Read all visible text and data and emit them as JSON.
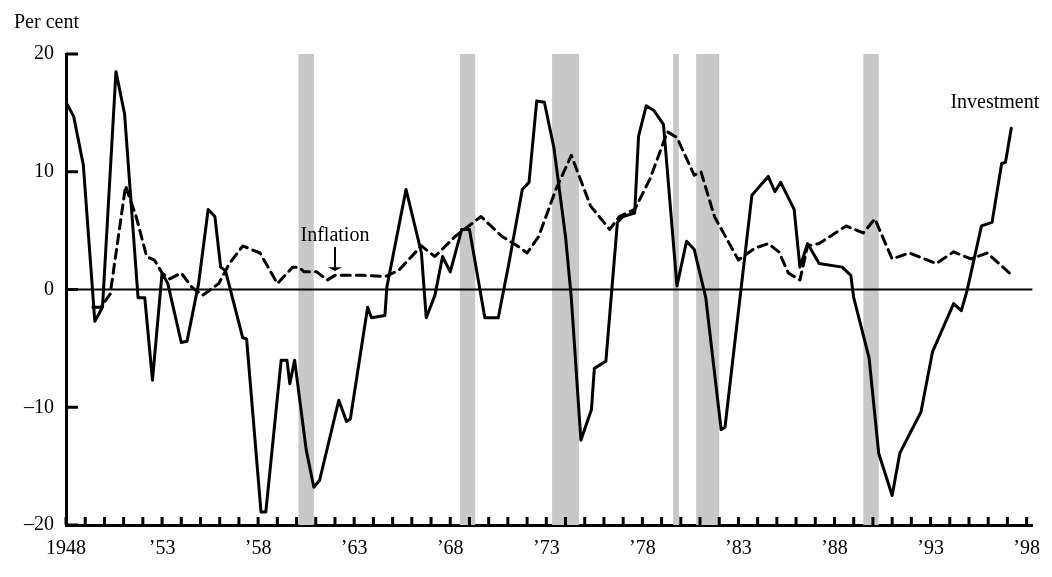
{
  "chart_data": {
    "type": "line",
    "ylabel": "Per cent",
    "xlim": [
      1948,
      1998.3
    ],
    "ylim": [
      -20,
      20
    ],
    "yticks": [
      {
        "value": -20,
        "label": "–20"
      },
      {
        "value": -10,
        "label": "–10"
      },
      0,
      10,
      20
    ],
    "xticks": [
      {
        "value": 1948,
        "label": "1948"
      },
      {
        "value": 1949,
        "label": null
      },
      {
        "value": 1950,
        "label": null
      },
      {
        "value": 1951,
        "label": null
      },
      {
        "value": 1952,
        "label": null
      },
      {
        "value": 1953,
        "label": "’53"
      },
      {
        "value": 1954,
        "label": null
      },
      {
        "value": 1955,
        "label": null
      },
      {
        "value": 1956,
        "label": null
      },
      {
        "value": 1957,
        "label": null
      },
      {
        "value": 1958,
        "label": "’58"
      },
      {
        "value": 1959,
        "label": null
      },
      {
        "value": 1960,
        "label": null
      },
      {
        "value": 1961,
        "label": null
      },
      {
        "value": 1962,
        "label": null
      },
      {
        "value": 1963,
        "label": "’63"
      },
      {
        "value": 1964,
        "label": null
      },
      {
        "value": 1965,
        "label": null
      },
      {
        "value": 1966,
        "label": null
      },
      {
        "value": 1967,
        "label": null
      },
      {
        "value": 1968,
        "label": "’68"
      },
      {
        "value": 1969,
        "label": null
      },
      {
        "value": 1970,
        "label": null
      },
      {
        "value": 1971,
        "label": null
      },
      {
        "value": 1972,
        "label": null
      },
      {
        "value": 1973,
        "label": "’73"
      },
      {
        "value": 1974,
        "label": null
      },
      {
        "value": 1975,
        "label": null
      },
      {
        "value": 1976,
        "label": null
      },
      {
        "value": 1977,
        "label": null
      },
      {
        "value": 1978,
        "label": "’78"
      },
      {
        "value": 1979,
        "label": null
      },
      {
        "value": 1980,
        "label": null
      },
      {
        "value": 1981,
        "label": null
      },
      {
        "value": 1982,
        "label": null
      },
      {
        "value": 1983,
        "label": "’83"
      },
      {
        "value": 1984,
        "label": null
      },
      {
        "value": 1985,
        "label": null
      },
      {
        "value": 1986,
        "label": null
      },
      {
        "value": 1987,
        "label": null
      },
      {
        "value": 1988,
        "label": "’88"
      },
      {
        "value": 1989,
        "label": null
      },
      {
        "value": 1990,
        "label": null
      },
      {
        "value": 1991,
        "label": null
      },
      {
        "value": 1992,
        "label": null
      },
      {
        "value": 1993,
        "label": "’93"
      },
      {
        "value": 1994,
        "label": null
      },
      {
        "value": 1995,
        "label": null
      },
      {
        "value": 1996,
        "label": null
      },
      {
        "value": 1997,
        "label": null
      },
      {
        "value": 1998,
        "label": "’98"
      }
    ],
    "bands": [
      {
        "axis": "x",
        "from": 1960.1,
        "to": 1960.9,
        "color": "#c8c8c8"
      },
      {
        "axis": "x",
        "from": 1968.5,
        "to": 1969.3,
        "color": "#c8c8c8"
      },
      {
        "axis": "x",
        "from": 1973.3,
        "to": 1974.7,
        "color": "#c8c8c8"
      },
      {
        "axis": "x",
        "from": 1979.6,
        "to": 1979.9,
        "color": "#c8c8c8"
      },
      {
        "axis": "x",
        "from": 1980.8,
        "to": 1982.0,
        "color": "#c8c8c8"
      },
      {
        "axis": "x",
        "from": 1989.5,
        "to": 1990.3,
        "color": "#c8c8c8"
      }
    ],
    "ref_lines": [
      {
        "axis": "y",
        "value": 0,
        "color": "#000000"
      }
    ],
    "legend": false,
    "series": [
      {
        "name": "Investment",
        "color": "#000000",
        "line_style": "solid",
        "x": [
          1948.0,
          1948.4,
          1948.9,
          1949.5,
          1949.9,
          1950.6,
          1951.05,
          1951.75,
          1952.1,
          1952.5,
          1953.0,
          1953.3,
          1954.0,
          1954.3,
          1954.9,
          1955.4,
          1955.75,
          1956.05,
          1956.3,
          1957.2,
          1957.4,
          1958.15,
          1958.4,
          1959.2,
          1959.5,
          1959.65,
          1959.9,
          1960.5,
          1960.9,
          1961.2,
          1962.2,
          1962.6,
          1962.8,
          1963.7,
          1963.9,
          1964.6,
          1964.7,
          1965.7,
          1966.5,
          1966.75,
          1967.2,
          1967.6,
          1968.0,
          1968.6,
          1969.0,
          1969.8,
          1970.5,
          1971.05,
          1971.75,
          1972.1,
          1972.5,
          1972.9,
          1973.4,
          1974.0,
          1974.3,
          1974.8,
          1975.35,
          1975.5,
          1976.1,
          1976.7,
          1977.0,
          1977.6,
          1977.8,
          1978.2,
          1978.6,
          1979.1,
          1979.8,
          1980.3,
          1980.7,
          1981.3,
          1982.1,
          1982.3,
          1983.7,
          1984.55,
          1984.9,
          1985.2,
          1985.9,
          1986.2,
          1986.6,
          1987.2,
          1988.4,
          1988.85,
          1989.0,
          1989.8,
          1990.3,
          1991.0,
          1991.4,
          1992.5,
          1993.1,
          1994.2,
          1994.6,
          1994.9,
          1995.65,
          1996.2,
          1996.7,
          1996.9,
          1997.2
        ],
        "values": [
          15.9,
          14.7,
          10.6,
          -2.7,
          -1.5,
          18.5,
          14.9,
          -0.7,
          -0.7,
          -7.7,
          1.4,
          0.5,
          -4.5,
          -4.4,
          0.5,
          6.8,
          6.2,
          1.9,
          1.6,
          -4.1,
          -4.2,
          -18.9,
          -18.9,
          -6.0,
          -6.0,
          -8.0,
          -6.0,
          -13.6,
          -16.8,
          -16.2,
          -9.4,
          -11.2,
          -11.0,
          -1.5,
          -2.4,
          -2.2,
          0.2,
          8.5,
          3.1,
          -2.4,
          -0.5,
          2.8,
          1.5,
          5.1,
          5.1,
          -2.4,
          -2.4,
          2.2,
          8.5,
          9.1,
          16.0,
          15.9,
          12.0,
          4.5,
          -0.7,
          -12.8,
          -10.2,
          -6.7,
          -6.1,
          5.7,
          6.2,
          6.5,
          13.0,
          15.6,
          15.2,
          14.0,
          0.3,
          4.1,
          3.4,
          -0.7,
          -11.9,
          -11.7,
          8.0,
          9.6,
          8.3,
          9.1,
          6.8,
          1.9,
          3.9,
          2.2,
          1.9,
          1.2,
          -0.7,
          -5.8,
          -13.9,
          -17.5,
          -13.9,
          -10.4,
          -5.3,
          -1.2,
          -1.8,
          -0.1,
          5.4,
          5.7,
          10.7,
          10.8,
          13.7
        ]
      },
      {
        "name": "Inflation",
        "color": "#000000",
        "line_style": "dashed",
        "x": [
          1949.4,
          1949.8,
          1950.3,
          1951.1,
          1951.65,
          1952.2,
          1952.6,
          1953.0,
          1953.4,
          1954.0,
          1954.55,
          1955.1,
          1955.95,
          1956.5,
          1957.2,
          1958.1,
          1959.0,
          1959.8,
          1960.1,
          1960.4,
          1961.05,
          1961.6,
          1962.0,
          1963.5,
          1964.6,
          1965.3,
          1966.5,
          1967.2,
          1968.25,
          1969.6,
          1970.7,
          1971.5,
          1972.0,
          1972.6,
          1973.5,
          1974.3,
          1975.3,
          1976.3,
          1976.8,
          1977.6,
          1978.4,
          1979.3,
          1979.8,
          1980.7,
          1981.05,
          1981.75,
          1983.0,
          1983.85,
          1984.55,
          1985.1,
          1985.6,
          1986.2,
          1986.6,
          1987.2,
          1988.6,
          1989.5,
          1990.1,
          1991.0,
          1991.9,
          1993.3,
          1994.2,
          1995.1,
          1995.95,
          1997.1
        ],
        "values": [
          -1.5,
          -1.5,
          -0.4,
          8.8,
          6.2,
          2.8,
          2.5,
          1.4,
          0.9,
          1.4,
          0.2,
          -0.5,
          0.5,
          2.2,
          3.7,
          3.1,
          0.5,
          1.9,
          1.9,
          1.5,
          1.5,
          0.8,
          1.2,
          1.2,
          1.1,
          1.6,
          3.7,
          2.8,
          4.5,
          6.2,
          4.5,
          3.7,
          3.1,
          4.5,
          8.5,
          11.4,
          7.1,
          5.1,
          6.2,
          6.8,
          9.4,
          13.4,
          12.9,
          9.7,
          10.0,
          6.2,
          2.5,
          3.5,
          3.9,
          3.2,
          1.4,
          0.8,
          3.7,
          3.9,
          5.4,
          4.8,
          6.0,
          2.6,
          3.1,
          2.2,
          3.2,
          2.6,
          3.1,
          1.4
        ]
      }
    ]
  }
}
